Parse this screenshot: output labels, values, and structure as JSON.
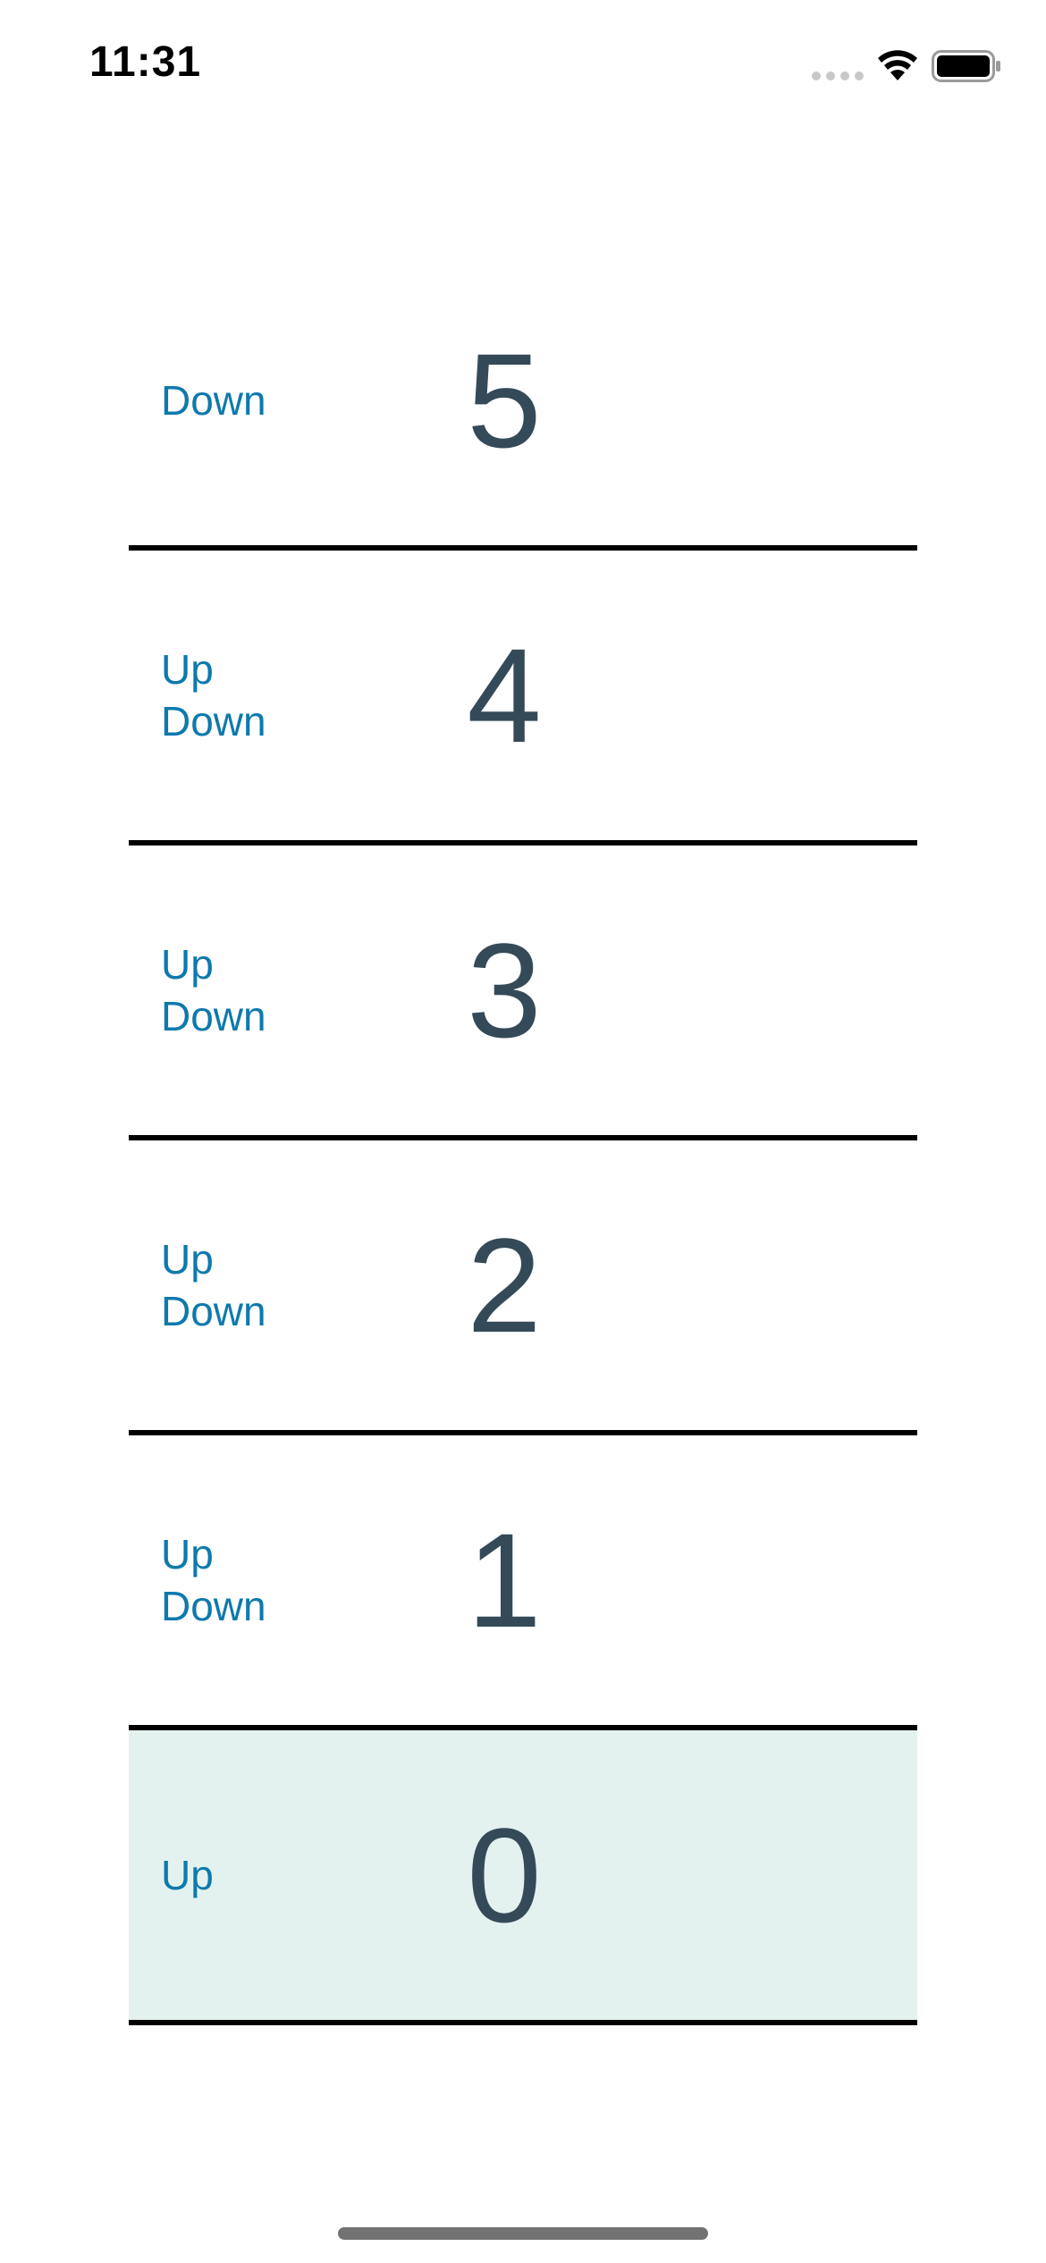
{
  "status_bar": {
    "time": "11:31",
    "icons": [
      "signal-dots-icon",
      "wifi-icon",
      "battery-icon"
    ]
  },
  "colors": {
    "button_text": "#0e79ad",
    "floor_number": "#354a59",
    "current_row_bg": "#e3f2ef",
    "divider": "#000000"
  },
  "floors": [
    {
      "number": "5",
      "up_label": null,
      "down_label": "Down",
      "current": false
    },
    {
      "number": "4",
      "up_label": "Up",
      "down_label": "Down",
      "current": false
    },
    {
      "number": "3",
      "up_label": "Up",
      "down_label": "Down",
      "current": false
    },
    {
      "number": "2",
      "up_label": "Up",
      "down_label": "Down",
      "current": false
    },
    {
      "number": "1",
      "up_label": "Up",
      "down_label": "Down",
      "current": false
    },
    {
      "number": "0",
      "up_label": "Up",
      "down_label": null,
      "current": true
    }
  ]
}
